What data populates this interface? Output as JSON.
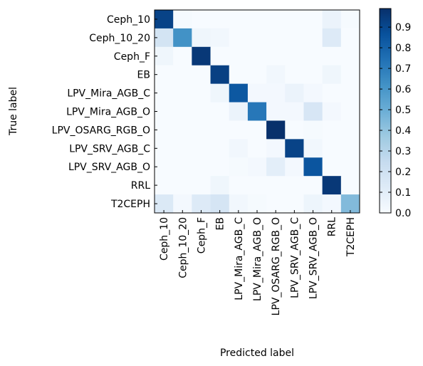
{
  "chart_data": {
    "type": "heatmap",
    "title": "",
    "xlabel": "Predicted label",
    "ylabel": "True label",
    "x_categories": [
      "Ceph_10",
      "Ceph_10_20",
      "Ceph_F",
      "EB",
      "LPV_Mira_AGB_C",
      "LPV_Mira_AGB_O",
      "LPV_OSARG_RGB_O",
      "LPV_SRV_AGB_C",
      "LPV_SRV_AGB_O",
      "RRL",
      "T2CEPH"
    ],
    "y_categories": [
      "Ceph_10",
      "Ceph_10_20",
      "Ceph_F",
      "EB",
      "LPV_Mira_AGB_C",
      "LPV_Mira_AGB_O",
      "LPV_OSARG_RGB_O",
      "LPV_SRV_AGB_C",
      "LPV_SRV_AGB_O",
      "RRL",
      "T2CEPH"
    ],
    "values": [
      [
        0.92,
        0.01,
        0.0,
        0.0,
        0.0,
        0.0,
        0.0,
        0.0,
        0.0,
        0.06,
        0.01
      ],
      [
        0.18,
        0.62,
        0.04,
        0.03,
        0.0,
        0.0,
        0.0,
        0.0,
        0.0,
        0.13,
        0.0
      ],
      [
        0.04,
        0.0,
        0.96,
        0.0,
        0.0,
        0.0,
        0.0,
        0.0,
        0.0,
        0.0,
        0.0
      ],
      [
        0.0,
        0.0,
        0.0,
        0.93,
        0.0,
        0.0,
        0.03,
        0.0,
        0.0,
        0.04,
        0.0
      ],
      [
        0.0,
        0.0,
        0.0,
        0.04,
        0.84,
        0.02,
        0.02,
        0.06,
        0.02,
        0.0,
        0.0
      ],
      [
        0.0,
        0.0,
        0.0,
        0.0,
        0.06,
        0.72,
        0.02,
        0.02,
        0.16,
        0.02,
        0.0
      ],
      [
        0.0,
        0.0,
        0.0,
        0.0,
        0.0,
        0.0,
        0.99,
        0.0,
        0.01,
        0.0,
        0.0
      ],
      [
        0.0,
        0.0,
        0.0,
        0.0,
        0.03,
        0.0,
        0.02,
        0.92,
        0.03,
        0.0,
        0.0
      ],
      [
        0.0,
        0.0,
        0.0,
        0.0,
        0.01,
        0.02,
        0.1,
        0.02,
        0.85,
        0.0,
        0.0
      ],
      [
        0.0,
        0.0,
        0.0,
        0.04,
        0.0,
        0.0,
        0.0,
        0.0,
        0.0,
        0.96,
        0.0
      ],
      [
        0.14,
        0.02,
        0.13,
        0.17,
        0.03,
        0.01,
        0.0,
        0.0,
        0.05,
        0.02,
        0.44
      ]
    ],
    "colormap": "Blues",
    "vmin": 0.0,
    "vmax": 1.0,
    "colorbar_ticks": [
      "0.0",
      "0.1",
      "0.2",
      "0.3",
      "0.4",
      "0.5",
      "0.6",
      "0.7",
      "0.8",
      "0.9"
    ],
    "colorbar_tick_values": [
      0,
      0.1,
      0.2,
      0.3,
      0.4,
      0.5,
      0.6,
      0.7,
      0.8,
      0.9
    ],
    "colorbar_range": [
      0.0,
      0.99
    ],
    "grid": false
  }
}
